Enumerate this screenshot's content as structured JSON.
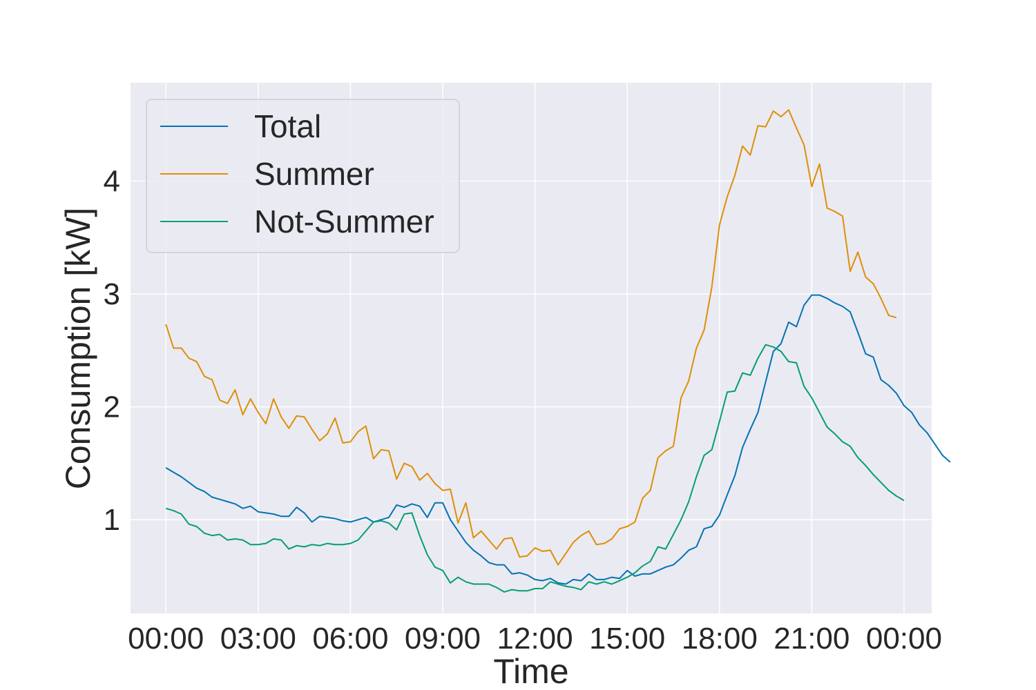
{
  "chart_data": {
    "type": "line",
    "title": "",
    "xlabel": "Time",
    "ylabel": "Consumption [kW]",
    "x_ticks": [
      "00:00",
      "03:00",
      "06:00",
      "09:00",
      "12:00",
      "15:00",
      "18:00",
      "21:00",
      "00:00"
    ],
    "x_tick_hours": [
      0,
      3,
      6,
      9,
      12,
      15,
      18,
      21,
      24
    ],
    "y_ticks": [
      1,
      2,
      3,
      4
    ],
    "xlim_hours": [
      -1.15,
      24.9
    ],
    "ylim": [
      0.17,
      4.87
    ],
    "x_interval_minutes": 15,
    "grid": true,
    "legend_position": "upper-left",
    "colors": {
      "background": "#EAEAF2",
      "grid": "#FFFFFF",
      "text": "#262626"
    },
    "series": [
      {
        "name": "Total",
        "color": "#0173B2",
        "values": [
          1.46,
          1.42,
          1.38,
          1.33,
          1.28,
          1.25,
          1.2,
          1.18,
          1.16,
          1.14,
          1.1,
          1.12,
          1.07,
          1.06,
          1.05,
          1.03,
          1.03,
          1.11,
          1.06,
          0.98,
          1.03,
          1.02,
          1.01,
          0.99,
          0.98,
          1.0,
          1.02,
          0.98,
          1.0,
          1.02,
          1.13,
          1.11,
          1.14,
          1.12,
          1.02,
          1.15,
          1.15,
          1.0,
          0.9,
          0.8,
          0.73,
          0.68,
          0.62,
          0.6,
          0.6,
          0.52,
          0.53,
          0.51,
          0.47,
          0.46,
          0.48,
          0.44,
          0.43,
          0.47,
          0.46,
          0.52,
          0.47,
          0.47,
          0.49,
          0.48,
          0.55,
          0.5,
          0.52,
          0.52,
          0.55,
          0.58,
          0.6,
          0.66,
          0.73,
          0.76,
          0.92,
          0.94,
          1.04,
          1.22,
          1.39,
          1.64,
          1.8,
          1.95,
          2.22,
          2.49,
          2.56,
          2.75,
          2.71,
          2.9,
          2.99,
          2.99,
          2.96,
          2.92,
          2.89,
          2.84,
          2.66,
          2.47,
          2.44,
          2.24,
          2.19,
          2.12,
          2.01,
          1.95,
          1.84,
          1.77,
          1.67,
          1.57,
          1.51
        ]
      },
      {
        "name": "Summer",
        "color": "#DE8F05",
        "values": [
          2.73,
          2.52,
          2.52,
          2.43,
          2.4,
          2.27,
          2.24,
          2.06,
          2.03,
          2.15,
          1.93,
          2.07,
          1.95,
          1.85,
          2.07,
          1.91,
          1.81,
          1.92,
          1.91,
          1.8,
          1.7,
          1.76,
          1.9,
          1.68,
          1.69,
          1.78,
          1.83,
          1.54,
          1.62,
          1.61,
          1.36,
          1.5,
          1.47,
          1.35,
          1.41,
          1.32,
          1.26,
          1.27,
          0.97,
          1.15,
          0.84,
          0.9,
          0.82,
          0.74,
          0.83,
          0.84,
          0.67,
          0.68,
          0.75,
          0.72,
          0.73,
          0.6,
          0.7,
          0.8,
          0.86,
          0.9,
          0.78,
          0.79,
          0.83,
          0.92,
          0.94,
          0.98,
          1.19,
          1.26,
          1.55,
          1.61,
          1.65,
          2.08,
          2.23,
          2.52,
          2.68,
          3.06,
          3.61,
          3.86,
          4.05,
          4.31,
          4.23,
          4.49,
          4.48,
          4.62,
          4.57,
          4.63,
          4.47,
          4.32,
          3.95,
          4.15,
          3.76,
          3.73,
          3.69,
          3.2,
          3.37,
          3.15,
          3.09,
          2.96,
          2.81,
          2.79
        ]
      },
      {
        "name": "Not-Summer",
        "color": "#029E73",
        "values": [
          1.1,
          1.08,
          1.05,
          0.96,
          0.94,
          0.88,
          0.86,
          0.87,
          0.82,
          0.83,
          0.82,
          0.78,
          0.78,
          0.79,
          0.83,
          0.82,
          0.74,
          0.77,
          0.76,
          0.78,
          0.77,
          0.79,
          0.78,
          0.78,
          0.79,
          0.82,
          0.9,
          0.98,
          0.99,
          0.97,
          0.91,
          1.05,
          1.06,
          0.86,
          0.69,
          0.58,
          0.55,
          0.44,
          0.49,
          0.45,
          0.43,
          0.43,
          0.43,
          0.4,
          0.36,
          0.38,
          0.37,
          0.37,
          0.39,
          0.39,
          0.45,
          0.43,
          0.41,
          0.4,
          0.38,
          0.45,
          0.43,
          0.45,
          0.43,
          0.46,
          0.49,
          0.53,
          0.59,
          0.63,
          0.76,
          0.74,
          0.87,
          1.0,
          1.16,
          1.38,
          1.57,
          1.62,
          1.87,
          2.13,
          2.14,
          2.3,
          2.28,
          2.43,
          2.55,
          2.53,
          2.49,
          2.4,
          2.39,
          2.18,
          2.08,
          1.95,
          1.82,
          1.76,
          1.69,
          1.65,
          1.55,
          1.48,
          1.4,
          1.33,
          1.26,
          1.21,
          1.17
        ]
      }
    ]
  }
}
